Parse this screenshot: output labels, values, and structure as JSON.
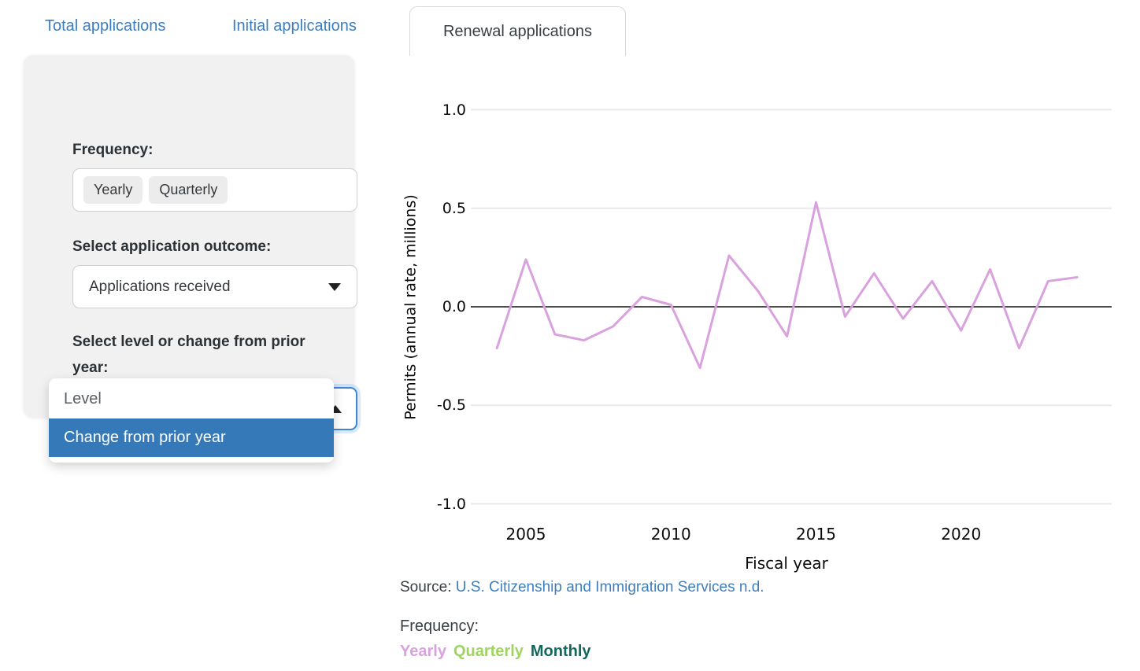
{
  "tabs": [
    {
      "label": "Total applications",
      "active": false
    },
    {
      "label": "Initial applications",
      "active": false
    },
    {
      "label": "Renewal applications",
      "active": true
    }
  ],
  "sidebar": {
    "frequency_label": "Frequency:",
    "frequency_options": [
      {
        "label": "Yearly"
      },
      {
        "label": "Quarterly"
      }
    ],
    "outcome_label": "Select application outcome:",
    "outcome_value": "Applications received",
    "level_label": "Select level or change from prior year:",
    "level_value": "Change from prior year",
    "level_menu": [
      {
        "label": "Level",
        "selected": false
      },
      {
        "label": "Change from prior year",
        "selected": true
      }
    ]
  },
  "chart_data": {
    "type": "line",
    "title": "",
    "xlabel": "Fiscal year",
    "ylabel": "Permits (annual rate, millions)",
    "x": [
      2004,
      2005,
      2006,
      2007,
      2008,
      2009,
      2010,
      2011,
      2012,
      2013,
      2014,
      2015,
      2016,
      2017,
      2018,
      2019,
      2020,
      2021,
      2022,
      2023,
      2024
    ],
    "series": [
      {
        "name": "Yearly",
        "color": "#d9a2de",
        "values": [
          -0.21,
          0.24,
          -0.14,
          -0.17,
          -0.1,
          0.05,
          0.01,
          -0.31,
          0.26,
          0.08,
          -0.15,
          0.53,
          -0.05,
          0.17,
          -0.06,
          0.13,
          -0.12,
          0.19,
          -0.21,
          0.13,
          0.15
        ]
      }
    ],
    "xticks": [
      "2005",
      "2010",
      "2015",
      "2020"
    ],
    "yticks": [
      "1.0",
      "0.5",
      "0.0",
      "-0.5",
      "-1.0"
    ],
    "ylim": [
      -1.0,
      1.0
    ],
    "grid": true,
    "zero_line": true,
    "legend_position": "none"
  },
  "footer": {
    "source_prefix": "Source: ",
    "source_link": "U.S. Citizenship and Immigration Services n.d.",
    "frequency_caption": "Frequency:",
    "legend": [
      {
        "label": "Yearly",
        "color": "#d9a2de"
      },
      {
        "label": "Quarterly",
        "color": "#9ed45f"
      },
      {
        "label": "Monthly",
        "color": "#11695e"
      }
    ]
  },
  "colors": {
    "tab_link": "#3d7ebf",
    "selected_option_bg": "#3579b8",
    "focus_border": "#3f86d2",
    "panel_bg": "#f1f1f2",
    "grid_line": "#e9e9e9",
    "zero_line": "#111111"
  }
}
